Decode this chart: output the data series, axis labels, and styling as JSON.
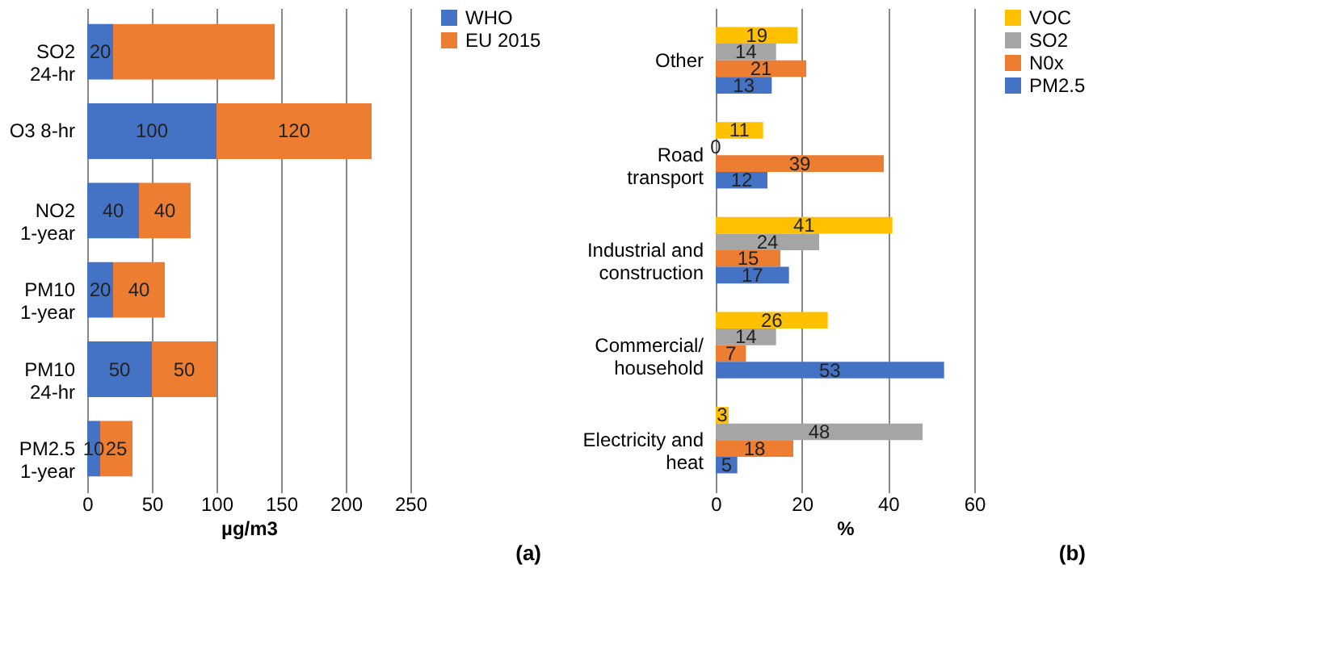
{
  "chart_data": [
    {
      "type": "bar",
      "orientation": "horizontal",
      "stacked": true,
      "categories": [
        "SO2 24-hr",
        "O3 8-hr",
        "NO2 1-year",
        "PM10 1-year",
        "PM10 24-hr",
        "PM2.5 1-year"
      ],
      "series": [
        {
          "name": "WHO",
          "color": "#4472c4",
          "values": [
            20,
            100,
            40,
            20,
            50,
            10
          ],
          "value_labels": [
            "20",
            "100",
            "40",
            "20",
            "50",
            "10"
          ]
        },
        {
          "name": "EU 2015",
          "color": "#ed7d31",
          "values": [
            125,
            120,
            40,
            40,
            50,
            25
          ],
          "value_labels": [
            null,
            "120",
            "40",
            "40",
            "50",
            "25"
          ]
        }
      ],
      "xlim": [
        0,
        250
      ],
      "xticks": [
        0,
        50,
        100,
        150,
        200,
        250
      ],
      "xlabel": "µg/m3",
      "grid": "x",
      "legend": "right",
      "annotations": [
        "(a)"
      ]
    },
    {
      "type": "bar",
      "orientation": "horizontal",
      "categories": [
        "Other",
        "Road transport",
        "Industrial and construction",
        "Commercial/ household",
        "Electricity and heat"
      ],
      "series": [
        {
          "name": "VOC",
          "color": "#ffc000",
          "values": [
            19,
            11,
            41,
            26,
            3
          ]
        },
        {
          "name": "SO2",
          "color": "#a5a5a5",
          "values": [
            14,
            0,
            24,
            14,
            48
          ]
        },
        {
          "name": "N0x",
          "color": "#ed7d31",
          "values": [
            21,
            39,
            15,
            7,
            18
          ]
        },
        {
          "name": "PM2.5",
          "color": "#4472c4",
          "values": [
            13,
            12,
            17,
            53,
            5
          ]
        }
      ],
      "xlim": [
        0,
        60
      ],
      "xticks": [
        0,
        20,
        40,
        60
      ],
      "xlabel": "%",
      "grid": "x",
      "legend": "right",
      "data_labels": true,
      "annotations": [
        "(b)"
      ]
    }
  ]
}
